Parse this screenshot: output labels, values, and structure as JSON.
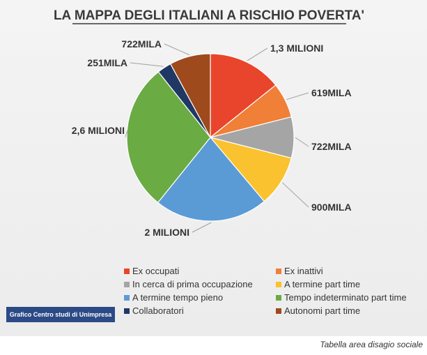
{
  "chart_data": {
    "type": "pie",
    "title": "LA MAPPA DEGLI ITALIANI A RISCHIO POVERTA'",
    "unit": "persone",
    "series": [
      {
        "name": "Ex occupati",
        "value": 1300000,
        "label": "1,3 MILIONI",
        "color": "#e8452c"
      },
      {
        "name": "Ex inattivi",
        "value": 619000,
        "label": "619MILA",
        "color": "#f07f37"
      },
      {
        "name": "In cerca di prima occupazione",
        "value": 722000,
        "label": "722MILA",
        "color": "#a5a5a5"
      },
      {
        "name": "A termine part time",
        "value": 900000,
        "label": "900MILA",
        "color": "#f9c22e"
      },
      {
        "name": "A termine tempo pieno",
        "value": 2000000,
        "label": "2 MILIONI",
        "color": "#5b9bd5"
      },
      {
        "name": "Tempo indeterminato part time",
        "value": 2600000,
        "label": "2,6 MILIONI",
        "color": "#6aab44"
      },
      {
        "name": "Collaboratori",
        "value": 251000,
        "label": "251MILA",
        "color": "#1f3864"
      },
      {
        "name": "Autonomi part time",
        "value": 722000,
        "label": "722MILA",
        "color": "#9e4a1c"
      }
    ],
    "legend_position": "bottom"
  },
  "source_badge": "Grafico Centro studi di Unimpresa",
  "caption": "Tabella area disagio sociale"
}
